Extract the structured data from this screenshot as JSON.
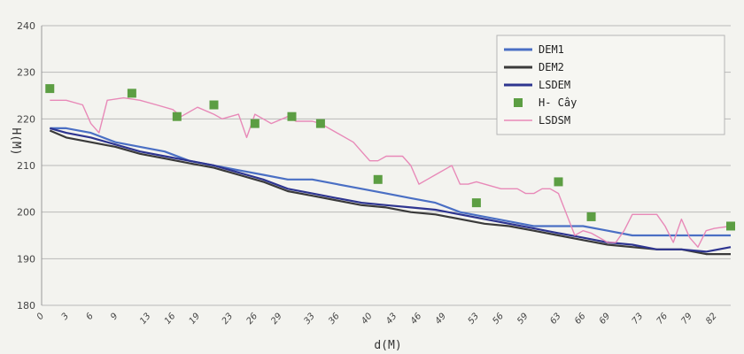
{
  "chart_data": {
    "type": "line",
    "title": "",
    "xlabel": "d(M)",
    "ylabel": "H(M)",
    "ylim": [
      180,
      240
    ],
    "xlim": [
      0,
      84
    ],
    "grid": true,
    "legend_position": "top-right",
    "yticks": [
      "180",
      "190",
      "200",
      "210",
      "220",
      "230",
      "240"
    ],
    "xticks": [
      "0",
      "3",
      "6",
      "9",
      "13",
      "16",
      "19",
      "23",
      "26",
      "29",
      "33",
      "36",
      "40",
      "43",
      "46",
      "49",
      "53",
      "56",
      "59",
      "63",
      "66",
      "69",
      "73",
      "76",
      "79",
      "82"
    ],
    "series": [
      {
        "name": "DEM1",
        "style": "line",
        "color": "#4a6fc4",
        "points": [
          [
            1,
            218
          ],
          [
            3,
            218
          ],
          [
            6,
            217
          ],
          [
            9,
            215
          ],
          [
            12,
            214
          ],
          [
            15,
            213
          ],
          [
            18,
            211
          ],
          [
            21,
            210
          ],
          [
            24,
            209
          ],
          [
            27,
            208
          ],
          [
            30,
            207
          ],
          [
            33,
            207
          ],
          [
            36,
            206
          ],
          [
            39,
            205
          ],
          [
            42,
            204
          ],
          [
            45,
            203
          ],
          [
            48,
            202
          ],
          [
            51,
            200
          ],
          [
            54,
            199
          ],
          [
            57,
            198
          ],
          [
            60,
            197
          ],
          [
            63,
            197
          ],
          [
            66,
            197
          ],
          [
            69,
            196
          ],
          [
            72,
            195
          ],
          [
            75,
            195
          ],
          [
            78,
            195
          ],
          [
            81,
            195
          ],
          [
            84,
            195
          ]
        ]
      },
      {
        "name": "DEM2",
        "style": "line",
        "color": "#3a3a3a",
        "points": [
          [
            1,
            217.5
          ],
          [
            3,
            216
          ],
          [
            6,
            215
          ],
          [
            9,
            214
          ],
          [
            12,
            212.5
          ],
          [
            15,
            211.5
          ],
          [
            18,
            210.5
          ],
          [
            21,
            209.5
          ],
          [
            24,
            208
          ],
          [
            27,
            206.5
          ],
          [
            30,
            204.5
          ],
          [
            33,
            203.5
          ],
          [
            36,
            202.5
          ],
          [
            39,
            201.5
          ],
          [
            42,
            201
          ],
          [
            45,
            200
          ],
          [
            48,
            199.5
          ],
          [
            51,
            198.5
          ],
          [
            54,
            197.5
          ],
          [
            57,
            197
          ],
          [
            60,
            196
          ],
          [
            63,
            195
          ],
          [
            66,
            194
          ],
          [
            69,
            193
          ],
          [
            72,
            192.5
          ],
          [
            75,
            192
          ],
          [
            78,
            192
          ],
          [
            81,
            191
          ],
          [
            84,
            191
          ]
        ]
      },
      {
        "name": "LSDEM",
        "style": "line",
        "color": "#2e3590",
        "points": [
          [
            1,
            218
          ],
          [
            3,
            217
          ],
          [
            6,
            216
          ],
          [
            9,
            214.5
          ],
          [
            12,
            213
          ],
          [
            15,
            212
          ],
          [
            18,
            211
          ],
          [
            21,
            210
          ],
          [
            24,
            208.5
          ],
          [
            27,
            207
          ],
          [
            30,
            205
          ],
          [
            33,
            204
          ],
          [
            36,
            203
          ],
          [
            39,
            202
          ],
          [
            42,
            201.5
          ],
          [
            45,
            201
          ],
          [
            48,
            200.5
          ],
          [
            51,
            199.5
          ],
          [
            54,
            198.5
          ],
          [
            57,
            197.5
          ],
          [
            60,
            196.5
          ],
          [
            63,
            195.5
          ],
          [
            66,
            194.5
          ],
          [
            69,
            193.5
          ],
          [
            72,
            193
          ],
          [
            75,
            192
          ],
          [
            78,
            192
          ],
          [
            81,
            191.5
          ],
          [
            84,
            192.5
          ]
        ]
      },
      {
        "name": "H- Cây",
        "style": "markers",
        "color": "#5c9e43",
        "points": [
          [
            1,
            226.5
          ],
          [
            11,
            225.5
          ],
          [
            16.5,
            220.5
          ],
          [
            21,
            223
          ],
          [
            26,
            219
          ],
          [
            30.5,
            220.5
          ],
          [
            34,
            219
          ],
          [
            41,
            207
          ],
          [
            53,
            202
          ],
          [
            63,
            206.5
          ],
          [
            67,
            199
          ],
          [
            84,
            197
          ]
        ]
      },
      {
        "name": "LSDSM",
        "style": "line",
        "color": "#e889b8",
        "points": [
          [
            1,
            224
          ],
          [
            3,
            224
          ],
          [
            5,
            223
          ],
          [
            6,
            219
          ],
          [
            7,
            217
          ],
          [
            8,
            224
          ],
          [
            10,
            224.5
          ],
          [
            12,
            224
          ],
          [
            14,
            223
          ],
          [
            16,
            222
          ],
          [
            17,
            220.5
          ],
          [
            19,
            222.5
          ],
          [
            21,
            221
          ],
          [
            22,
            220
          ],
          [
            24,
            221
          ],
          [
            25,
            216
          ],
          [
            26,
            221
          ],
          [
            27,
            220
          ],
          [
            28,
            219
          ],
          [
            30,
            220.5
          ],
          [
            31,
            219.5
          ],
          [
            33,
            219.5
          ],
          [
            34,
            219
          ],
          [
            36,
            217
          ],
          [
            38,
            215
          ],
          [
            39,
            213
          ],
          [
            40,
            211
          ],
          [
            41,
            211
          ],
          [
            42,
            212
          ],
          [
            44,
            212
          ],
          [
            45,
            210
          ],
          [
            46,
            206
          ],
          [
            47,
            207
          ],
          [
            48,
            208
          ],
          [
            50,
            210
          ],
          [
            51,
            206
          ],
          [
            52,
            206
          ],
          [
            53,
            206.5
          ],
          [
            54,
            206
          ],
          [
            56,
            205
          ],
          [
            57,
            205
          ],
          [
            58,
            205
          ],
          [
            59,
            204
          ],
          [
            60,
            204
          ],
          [
            61,
            205
          ],
          [
            62,
            205
          ],
          [
            63,
            204
          ],
          [
            65,
            195
          ],
          [
            66,
            196
          ],
          [
            67,
            195.5
          ],
          [
            68,
            194.5
          ],
          [
            69,
            193.5
          ],
          [
            70,
            193.5
          ],
          [
            71,
            196
          ],
          [
            72,
            199.5
          ],
          [
            74,
            199.5
          ],
          [
            75,
            199.5
          ],
          [
            76,
            197
          ],
          [
            77,
            193.5
          ],
          [
            78,
            198.5
          ],
          [
            79,
            194.5
          ],
          [
            80,
            192.5
          ],
          [
            81,
            196
          ],
          [
            82,
            196.5
          ],
          [
            84,
            197
          ]
        ]
      }
    ]
  }
}
